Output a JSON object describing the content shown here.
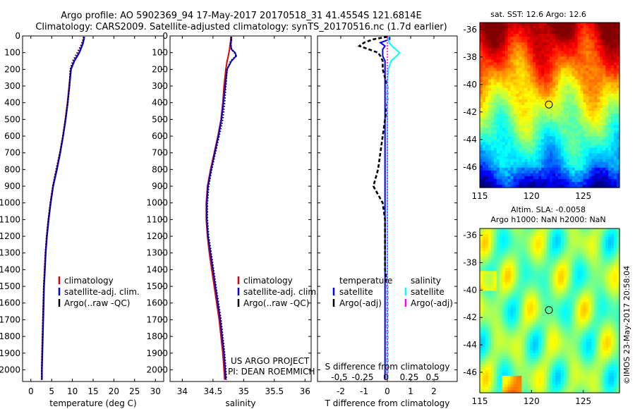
{
  "header": {
    "line1": "Argo profile: AO 5902369_94 17-May-2017 20170518_31 41.4554S 121.6814E",
    "line2": "Climatology: CARS2009. Satellite-adjusted climatology: synTS_20170516.nc (1.7d earlier)"
  },
  "colors": {
    "climatology": "#e00000",
    "satellite": "#0000ff",
    "argo": "#000000",
    "sal_satellite": "#00ffff",
    "sal_argo": "#ff00ff"
  },
  "chart_data": [
    {
      "type": "line",
      "id": "temperature",
      "title": "",
      "xlabel": "temperature (deg C)",
      "ylabel": "",
      "xlim": [
        -2,
        32
      ],
      "ylim": [
        2070,
        0
      ],
      "xticks": [
        0,
        5,
        10,
        15,
        20,
        25,
        30
      ],
      "yticks": [
        0,
        100,
        200,
        300,
        400,
        500,
        600,
        700,
        800,
        900,
        1000,
        1100,
        1200,
        1300,
        1400,
        1500,
        1600,
        1700,
        1800,
        1900,
        2000
      ],
      "depth": [
        5,
        20,
        50,
        100,
        150,
        200,
        300,
        400,
        500,
        600,
        700,
        800,
        900,
        1000,
        1100,
        1200,
        1300,
        1400,
        1500,
        1600,
        1700,
        1800,
        1900,
        2000,
        2060
      ],
      "series": [
        {
          "name": "climatology",
          "color": "#e00000",
          "dash": "solid",
          "values": [
            12.8,
            12.7,
            12.4,
            11.6,
            10.4,
            9.6,
            9.2,
            8.8,
            8.3,
            7.7,
            7.0,
            6.2,
            5.3,
            4.7,
            4.2,
            3.8,
            3.5,
            3.3,
            3.1,
            3.0,
            2.9,
            2.8,
            2.7,
            2.6,
            2.6
          ]
        },
        {
          "name": "satellite-adj. clim.",
          "color": "#0000ff",
          "dash": "solid",
          "values": [
            12.9,
            12.8,
            12.5,
            11.7,
            10.5,
            9.7,
            9.3,
            8.9,
            8.4,
            7.8,
            7.1,
            6.3,
            5.4,
            4.8,
            4.3,
            3.9,
            3.6,
            3.4,
            3.2,
            3.1,
            3.0,
            2.9,
            2.8,
            2.7,
            2.7
          ]
        },
        {
          "name": "Argo(..raw -QC)",
          "color": "#000000",
          "dash": "dotted",
          "values": [
            12.7,
            12.6,
            12.2,
            11.2,
            10.1,
            9.5,
            9.3,
            8.9,
            8.3,
            7.7,
            7.0,
            6.1,
            5.3,
            4.7,
            4.2,
            3.8,
            3.5,
            3.3,
            3.1,
            3.0,
            2.9,
            2.8,
            2.7,
            2.6,
            2.6
          ]
        }
      ]
    },
    {
      "type": "line",
      "id": "salinity",
      "xlabel": "salinity",
      "xlim": [
        33.8,
        36.1
      ],
      "ylim": [
        2070,
        0
      ],
      "xticks": [
        34,
        34.5,
        35,
        35.5,
        36
      ],
      "yticks": [
        0,
        100,
        200,
        300,
        400,
        500,
        600,
        700,
        800,
        900,
        1000,
        1100,
        1200,
        1300,
        1400,
        1500,
        1600,
        1700,
        1800,
        1900,
        2000
      ],
      "depth": [
        5,
        20,
        50,
        80,
        100,
        120,
        150,
        200,
        300,
        400,
        500,
        600,
        700,
        800,
        900,
        1000,
        1100,
        1200,
        1300,
        1400,
        1500,
        1600,
        1700,
        1800,
        1900,
        2000,
        2060
      ],
      "series": [
        {
          "name": "climatology",
          "color": "#e00000",
          "dash": "solid",
          "values": [
            34.79,
            34.79,
            34.78,
            34.77,
            34.76,
            34.75,
            34.73,
            34.71,
            34.68,
            34.66,
            34.63,
            34.58,
            34.52,
            34.46,
            34.41,
            34.39,
            34.39,
            34.41,
            34.44,
            34.48,
            34.52,
            34.56,
            34.6,
            34.63,
            34.66,
            34.68,
            34.69
          ]
        },
        {
          "name": "satellite-adj. clim.",
          "color": "#0000ff",
          "dash": "solid",
          "values": [
            34.8,
            34.8,
            34.79,
            34.8,
            34.86,
            34.88,
            34.8,
            34.73,
            34.7,
            34.67,
            34.64,
            34.59,
            34.53,
            34.47,
            34.42,
            34.4,
            34.4,
            34.42,
            34.46,
            34.5,
            34.54,
            34.58,
            34.62,
            34.65,
            34.68,
            34.7,
            34.71
          ]
        },
        {
          "name": "Argo(..raw -QC)",
          "color": "#000000",
          "dash": "dotted",
          "values": [
            34.8,
            34.8,
            34.79,
            34.8,
            34.85,
            34.87,
            34.79,
            34.73,
            34.71,
            34.69,
            34.66,
            34.6,
            34.54,
            34.48,
            34.43,
            34.41,
            34.41,
            34.43,
            34.47,
            34.51,
            34.55,
            34.59,
            34.63,
            34.66,
            34.69,
            34.71,
            34.72
          ]
        }
      ]
    },
    {
      "type": "line",
      "id": "difference",
      "xlabel": "T difference from climatology",
      "xlabel_top": "S difference from climatology",
      "xlim": [
        -3,
        3
      ],
      "ylim": [
        2070,
        0
      ],
      "xticks": [
        -2,
        -1,
        0,
        1,
        2
      ],
      "xticks_s": [
        "-0.5",
        "-0.25",
        "0",
        "0.25",
        "0.5"
      ],
      "yticks": [
        0,
        100,
        200,
        300,
        400,
        500,
        600,
        700,
        800,
        900,
        1000,
        1100,
        1200,
        1300,
        1400,
        1500,
        1600,
        1700,
        1800,
        1900,
        2000
      ],
      "depth": [
        5,
        20,
        40,
        60,
        80,
        100,
        120,
        150,
        200,
        300,
        400,
        500,
        600,
        700,
        800,
        900,
        1000,
        1100,
        1200,
        1300,
        1400,
        1500,
        1600,
        1700,
        1800,
        1900,
        2000,
        2060
      ],
      "series": [
        {
          "name": "T satellite",
          "color": "#0000ff",
          "dash": "solid",
          "values": [
            0.1,
            0.1,
            -0.3,
            -0.1,
            -0.2,
            -0.2,
            -0.2,
            -0.1,
            -0.1,
            -0.1,
            -0.1,
            -0.1,
            -0.1,
            -0.1,
            -0.1,
            -0.1,
            -0.1,
            -0.1,
            -0.1,
            -0.1,
            -0.1,
            -0.1,
            -0.1,
            -0.1,
            -0.1,
            -0.1,
            -0.1,
            -0.1
          ]
        },
        {
          "name": "T Argo(-adj)",
          "color": "#000000",
          "dash": "dashed",
          "values": [
            0.0,
            -0.6,
            -1.0,
            -1.2,
            -0.8,
            -0.4,
            -0.3,
            -0.2,
            -0.2,
            0.0,
            0.0,
            -0.1,
            -0.2,
            -0.3,
            -0.4,
            -0.6,
            -0.2,
            -0.1,
            -0.1,
            -0.1,
            -0.1,
            0.0,
            0.0,
            0.0,
            0.0,
            0.0,
            0.0,
            0.0
          ]
        },
        {
          "name": "S satellite",
          "color": "#00ffff",
          "dash": "solid",
          "values": [
            0.01,
            0.01,
            0.02,
            0.05,
            0.09,
            0.13,
            0.1,
            0.04,
            0.01,
            0.0,
            0.0,
            0.0,
            0.0,
            0.0,
            0.0,
            0.0,
            0.0,
            0.0,
            0.0,
            0.0,
            0.0,
            0.0,
            0.0,
            0.0,
            0.0,
            0.0,
            0.0,
            0.0
          ]
        },
        {
          "name": "S Argo(-adj)",
          "color": "#ff00ff",
          "dash": "dotted",
          "values": [
            0.0,
            0.0,
            0.0,
            0.0,
            0.0,
            0.0,
            0.0,
            0.0,
            0.0,
            0.0,
            0.0,
            0.0,
            0.0,
            0.0,
            0.0,
            0.0,
            0.0,
            0.0,
            0.0,
            0.0,
            0.0,
            0.0,
            0.0,
            0.0,
            0.0,
            0.0,
            0.0,
            0.0
          ]
        }
      ]
    },
    {
      "type": "heatmap",
      "id": "sst-map",
      "title": "sat. SST: 12.6 Argo: 12.6",
      "xlim": [
        115,
        128.5
      ],
      "ylim": [
        -47.5,
        -35.5
      ],
      "xticks": [
        115,
        120,
        125
      ],
      "yticks": [
        -36,
        -38,
        -40,
        -42,
        -44,
        -46
      ],
      "marker": {
        "lon": 121.68,
        "lat": -41.46
      }
    },
    {
      "type": "heatmap",
      "id": "sla-map",
      "title": "Altim. SLA: -0.0058",
      "subtitle": "Argo h1000: NaN h2000: NaN",
      "xlim": [
        115,
        128.5
      ],
      "ylim": [
        -47.5,
        -35.5
      ],
      "xticks": [
        115,
        120,
        125
      ],
      "yticks": [
        -36,
        -38,
        -40,
        -42,
        -44,
        -46
      ],
      "marker": {
        "lon": 121.68,
        "lat": -41.46
      }
    }
  ],
  "legends": {
    "temperature": [
      {
        "label": "climatology",
        "color": "#e00000"
      },
      {
        "label": "satellite-adj. clim.",
        "color": "#0000ff"
      },
      {
        "label": "Argo(..raw -QC)",
        "color": "#000000"
      }
    ],
    "salinity": [
      {
        "label": "climatology",
        "color": "#e00000"
      },
      {
        "label": "satellite-adj. clim.",
        "color": "#0000ff"
      },
      {
        "label": "Argo(..raw -QC)",
        "color": "#000000"
      }
    ],
    "difference": {
      "t_heading": "temperature",
      "s_heading": "salinity",
      "t_items": [
        {
          "label": "satellite",
          "color": "#0000ff"
        },
        {
          "label": "Argo(-adj)",
          "color": "#000000"
        }
      ],
      "s_items": [
        {
          "label": "satellite",
          "color": "#00ffff"
        },
        {
          "label": "Argo(-adj)",
          "color": "#ff00ff"
        }
      ]
    }
  },
  "project": {
    "line1": "US ARGO PROJECT",
    "line2": "PI: DEAN ROEMMICH"
  },
  "stamp": "©IMOS 23-May-2017 20:58:04"
}
